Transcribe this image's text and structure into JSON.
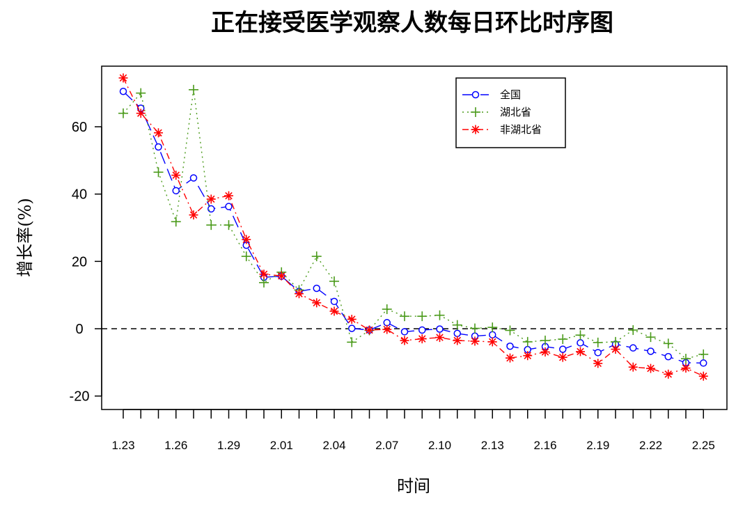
{
  "chart_data": {
    "type": "line",
    "title": "正在接受医学观察人数每日环比时序图",
    "xlabel": "时间",
    "ylabel": "增长率(%)",
    "ylim": [
      -24,
      78
    ],
    "yticks": [
      -20,
      0,
      20,
      40,
      60
    ],
    "xtick_labels": [
      "1.23",
      "1.26",
      "1.29",
      "2.01",
      "2.04",
      "2.07",
      "2.10",
      "2.13",
      "2.16",
      "2.19",
      "2.22",
      "2.25"
    ],
    "x": [
      "1.23",
      "1.24",
      "1.25",
      "1.26",
      "1.27",
      "1.28",
      "1.29",
      "1.30",
      "1.31",
      "2.01",
      "2.02",
      "2.03",
      "2.04",
      "2.05",
      "2.06",
      "2.07",
      "2.08",
      "2.09",
      "2.10",
      "2.11",
      "2.12",
      "2.13",
      "2.14",
      "2.15",
      "2.16",
      "2.17",
      "2.18",
      "2.19",
      "2.20",
      "2.21",
      "2.22",
      "2.23",
      "2.24",
      "2.25"
    ],
    "reference_line": {
      "y": 0,
      "style": "dashed"
    },
    "legend_position": "top-right",
    "series": [
      {
        "name": "全国",
        "color": "#0000ff",
        "marker": "circle",
        "line_style": "longdash",
        "values": [
          70.5,
          65.5,
          54,
          41,
          44.8,
          35.6,
          36.3,
          24.8,
          15.3,
          15.6,
          11.1,
          12,
          8.1,
          0.1,
          -0.4,
          1.8,
          -0.9,
          -0.4,
          -0.1,
          -1.4,
          -2.2,
          -1.8,
          -5.2,
          -6.2,
          -5.3,
          -6.1,
          -4.2,
          -7.1,
          -4.6,
          -5.7,
          -6.7,
          -8.3,
          -10.1,
          -10.2
        ]
      },
      {
        "name": "湖北省",
        "color": "#4a9a1a",
        "marker": "plus",
        "line_style": "dotted",
        "values": [
          64,
          70,
          46.5,
          31.8,
          71,
          30.8,
          30.8,
          21.5,
          13.7,
          16.8,
          11.5,
          21.5,
          14.1,
          -4,
          -0.5,
          5.8,
          3.7,
          3.7,
          4,
          1.1,
          0.1,
          0.4,
          -0.5,
          -3.9,
          -3.5,
          -3.1,
          -1.9,
          -4.1,
          -3.9,
          -0.4,
          -2.5,
          -4.4,
          -8.9,
          -7.6
        ]
      },
      {
        "name": "非湖北省",
        "color": "#ff0000",
        "marker": "asterisk",
        "line_style": "dotdash",
        "values": [
          74.5,
          64,
          58.2,
          45.6,
          33.8,
          38.5,
          39.5,
          26.5,
          16.2,
          15.7,
          10.4,
          7.7,
          5.2,
          2.8,
          -0.4,
          -0.2,
          -3.5,
          -3,
          -2.6,
          -3.5,
          -3.7,
          -3.9,
          -8.7,
          -8,
          -6.9,
          -8.5,
          -6.8,
          -10.3,
          -6.1,
          -11.4,
          -11.8,
          -13.5,
          -11.7,
          -14.1
        ]
      }
    ]
  }
}
